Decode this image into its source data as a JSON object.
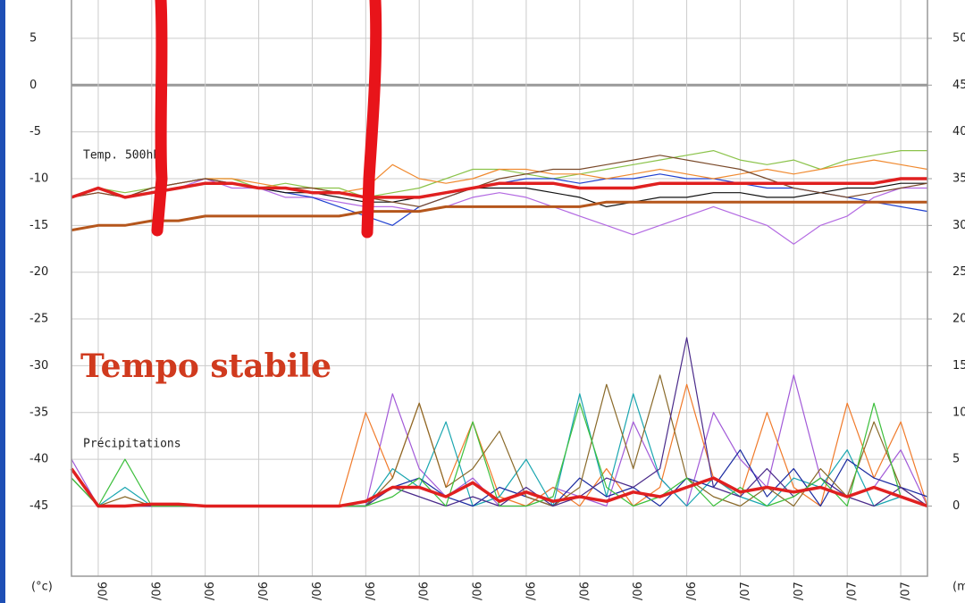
{
  "chart_data": {
    "type": "line",
    "annotations": [
      "Temp. 500hPa",
      "Précipitations",
      "Tempo stabile"
    ],
    "y_label": "(°c)",
    "y2_label": "(mm)",
    "x": [
      -0.5,
      0,
      0.5,
      1,
      1.5,
      2,
      2.5,
      3,
      3.5,
      4,
      4.5,
      5,
      5.5,
      6,
      6.5,
      7,
      7.5,
      8,
      8.5,
      9,
      9.5,
      10,
      10.5,
      11,
      11.5,
      12,
      12.5,
      13,
      13.5,
      14,
      14.5,
      15,
      15.5
    ],
    "xlim": [
      -0.5,
      15.5
    ],
    "xticks": [
      {
        "value": 0,
        "label": "/06"
      },
      {
        "value": 1,
        "label": "/06"
      },
      {
        "value": 2,
        "label": "/06"
      },
      {
        "value": 3,
        "label": "/06"
      },
      {
        "value": 4,
        "label": "/06"
      },
      {
        "value": 5,
        "label": "/06"
      },
      {
        "value": 6,
        "label": "/06"
      },
      {
        "value": 7,
        "label": "/06"
      },
      {
        "value": 8,
        "label": "/06"
      },
      {
        "value": 9,
        "label": "/06"
      },
      {
        "value": 10,
        "label": "/06"
      },
      {
        "value": 11,
        "label": "/06"
      },
      {
        "value": 12,
        "label": "/07"
      },
      {
        "value": 13,
        "label": "/07"
      },
      {
        "value": 14,
        "label": "/07"
      },
      {
        "value": 15,
        "label": "/07"
      }
    ],
    "ylim": [
      -52.5,
      9.1
    ],
    "yticks": [
      -45,
      -40,
      -35,
      -30,
      -25,
      -20,
      -15,
      -10,
      -5,
      0,
      5
    ],
    "y2lim": [
      -7.5,
      54.1
    ],
    "y2ticks": [
      0,
      5,
      10,
      15,
      20,
      25,
      30,
      35,
      40,
      45,
      50
    ],
    "grid": true,
    "series": [
      {
        "color": "#8bc34a",
        "values": [
          -12,
          -11,
          -11.5,
          -11,
          -10.5,
          -10,
          -10,
          -11,
          -10.5,
          -11,
          -11,
          -12,
          -11.5,
          -11,
          -10,
          -9,
          -9,
          -9.5,
          -10,
          -9.5,
          -9,
          -8.5,
          -8,
          -7.5,
          -7,
          -8,
          -8.5,
          -8,
          -9,
          -8,
          -7.5,
          -7,
          -7
        ]
      },
      {
        "color": "#b36ae2",
        "values": [
          -12,
          -11.5,
          -12,
          -11.5,
          -11,
          -10,
          -11,
          -11,
          -12,
          -12,
          -12.5,
          -13,
          -13,
          -13.5,
          -13,
          -12,
          -11.5,
          -12,
          -13,
          -14,
          -15,
          -16,
          -15,
          -14,
          -13,
          -14,
          -15,
          -17,
          -15,
          -14,
          -12,
          -11,
          -11
        ]
      },
      {
        "color": "#1f3fd0",
        "values": [
          -12,
          -11,
          -12,
          -11,
          -10.5,
          -10,
          -10.5,
          -11,
          -11.5,
          -12,
          -13,
          -14,
          -15,
          -13,
          -12,
          -11,
          -10.5,
          -10,
          -10,
          -10.5,
          -10,
          -10,
          -9.5,
          -10,
          -10,
          -10.5,
          -11,
          -11,
          -11.5,
          -12,
          -12.5,
          -13,
          -13.5
        ]
      },
      {
        "color": "#f08a30",
        "values": [
          -12,
          -11.5,
          -12,
          -11,
          -10.5,
          -10,
          -10,
          -10.5,
          -11,
          -11,
          -11.5,
          -11,
          -8.5,
          -10,
          -10.5,
          -10,
          -9,
          -9,
          -9.5,
          -9.5,
          -10,
          -9.5,
          -9,
          -9.5,
          -10,
          -9.5,
          -9,
          -9.5,
          -9,
          -8.5,
          -8,
          -8.5,
          -9
        ]
      },
      {
        "color": "#111111",
        "values": [
          -12,
          -11,
          -12,
          -11.5,
          -11,
          -10.5,
          -10.5,
          -11,
          -11.5,
          -11.5,
          -12,
          -12.5,
          -12.5,
          -12,
          -11.5,
          -11,
          -11,
          -11,
          -11.5,
          -12,
          -13,
          -12.5,
          -12,
          -12,
          -11.5,
          -11.5,
          -12,
          -12,
          -11.5,
          -11,
          -11,
          -10.5,
          -10.5
        ]
      },
      {
        "color": "#7a4a2a",
        "values": [
          -12,
          -11.5,
          -12,
          -11,
          -10.5,
          -10,
          -10.5,
          -11,
          -11,
          -11,
          -11.5,
          -12,
          -12.5,
          -13,
          -12,
          -11,
          -10,
          -9.5,
          -9,
          -9,
          -8.5,
          -8,
          -7.5,
          -8,
          -8.5,
          -9,
          -10,
          -11,
          -11.5,
          -12,
          -11.5,
          -11,
          -10.5
        ]
      },
      {
        "color": "#b5561c",
        "width": 3,
        "values": [
          -15.5,
          -15,
          -15,
          -14.5,
          -14.5,
          -14,
          -14,
          -14,
          -14,
          -14,
          -14,
          -13.5,
          -13.5,
          -13.5,
          -13,
          -13,
          -13,
          -13,
          -13,
          -13,
          -12.5,
          -12.5,
          -12.5,
          -12.5,
          -12.5,
          -12.5,
          -12.5,
          -12.5,
          -12.5,
          -12.5,
          -12.5,
          -12.5,
          -12.5
        ]
      },
      {
        "color": "#e02020",
        "width": 3.5,
        "values": [
          -12,
          -11,
          -12,
          -11.5,
          -11,
          -10.5,
          -10.5,
          -11,
          -11,
          -11.5,
          -11.5,
          -12,
          -12,
          -12,
          -11.5,
          -11,
          -10.5,
          -10.5,
          -10.5,
          -11,
          -11,
          -11,
          -10.5,
          -10.5,
          -10.5,
          -10.5,
          -10.5,
          -10.5,
          -10.5,
          -10.5,
          -10.5,
          -10,
          -10
        ]
      },
      {
        "color": "#a25ad8",
        "axis": "y2",
        "values": [
          5,
          0,
          0,
          0,
          0,
          0,
          0,
          0,
          0,
          0,
          0,
          0,
          12,
          4,
          1,
          3,
          0,
          0,
          2,
          1,
          0,
          9,
          3,
          0,
          10,
          5,
          2,
          14,
          3,
          1,
          2,
          6,
          0
        ]
      },
      {
        "color": "#f07a2a",
        "axis": "y2",
        "values": [
          4,
          0,
          0,
          0,
          0,
          0,
          0,
          0,
          0,
          0,
          0,
          10,
          3,
          11,
          2,
          9,
          1,
          0,
          2,
          0,
          4,
          0,
          2,
          13,
          3,
          1,
          10,
          2,
          0,
          11,
          3,
          9,
          0
        ]
      },
      {
        "color": "#1aa6b0",
        "axis": "y2",
        "values": [
          3,
          0,
          2,
          0,
          0,
          0,
          0,
          0,
          0,
          0,
          0,
          0,
          4,
          2,
          9,
          0,
          1,
          5,
          0,
          12,
          1,
          12,
          3,
          0,
          3,
          1,
          0,
          3,
          2,
          6,
          0,
          1,
          0
        ]
      },
      {
        "color": "#1a2aa0",
        "axis": "y2",
        "values": [
          4,
          0,
          0,
          0,
          0,
          0,
          0,
          0,
          0,
          0,
          0,
          0,
          2,
          3,
          1,
          0,
          2,
          1,
          0,
          3,
          1,
          2,
          0,
          3,
          2,
          6,
          1,
          4,
          0,
          5,
          3,
          2,
          1
        ]
      },
      {
        "color": "#8a6a2a",
        "axis": "y2",
        "values": [
          3,
          0,
          1,
          0,
          0,
          0,
          0,
          0,
          0,
          0,
          0,
          0,
          3,
          11,
          2,
          4,
          8,
          1,
          0,
          2,
          13,
          4,
          14,
          3,
          1,
          0,
          2,
          0,
          4,
          1,
          9,
          2,
          0
        ]
      },
      {
        "color": "#4a2a8a",
        "axis": "y2",
        "values": [
          4,
          0,
          0,
          0,
          0,
          0,
          0,
          0,
          0,
          0,
          0,
          0,
          2,
          1,
          0,
          1,
          0,
          2,
          0,
          1,
          3,
          2,
          4,
          18,
          2,
          1,
          4,
          1,
          3,
          1,
          0,
          2,
          0
        ]
      },
      {
        "color": "#3cbf3c",
        "axis": "y2",
        "values": [
          3,
          0,
          5,
          0,
          0,
          0,
          0,
          0,
          0,
          0,
          0,
          0,
          1,
          3,
          0,
          9,
          0,
          0,
          1,
          11,
          2,
          0,
          1,
          3,
          0,
          2,
          0,
          1,
          3,
          0,
          11,
          1,
          0
        ]
      },
      {
        "color": "#e02020",
        "width": 3.5,
        "axis": "y2",
        "values": [
          4,
          0,
          0,
          0.2,
          0.2,
          0,
          0,
          0,
          0,
          0,
          0,
          0.5,
          2,
          2,
          1,
          2.5,
          0.5,
          1.5,
          0.5,
          1,
          0.5,
          1.5,
          1,
          2,
          3,
          1.5,
          2,
          1.5,
          2,
          1,
          2,
          1,
          0
        ]
      }
    ]
  }
}
